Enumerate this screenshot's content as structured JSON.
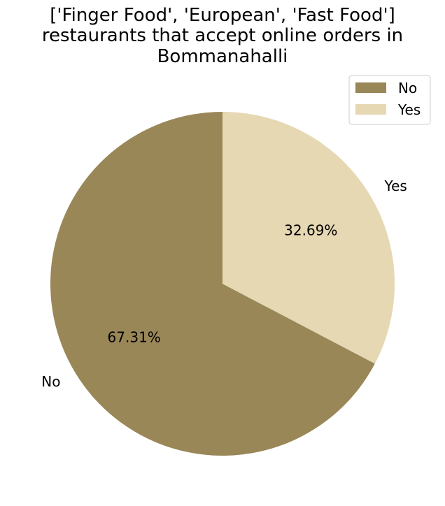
{
  "chart_data": {
    "type": "pie",
    "title": "['Finger Food', 'European', 'Fast Food'] restaurants that accept online orders in Bommanahalli",
    "title_lines": [
      "['Finger Food', 'European', 'Fast Food']",
      "restaurants that accept online orders in",
      "Bommanahalli"
    ],
    "categories": [
      "No",
      "Yes"
    ],
    "values": [
      67.31,
      32.69
    ],
    "value_labels": [
      "67.31%",
      "32.69%"
    ],
    "colors": [
      "#9A8758",
      "#E6D8B3"
    ],
    "start_angle_deg": 90,
    "direction": "counterclockwise",
    "legend": {
      "placement": "top-right",
      "entries": [
        "No",
        "Yes"
      ]
    }
  }
}
